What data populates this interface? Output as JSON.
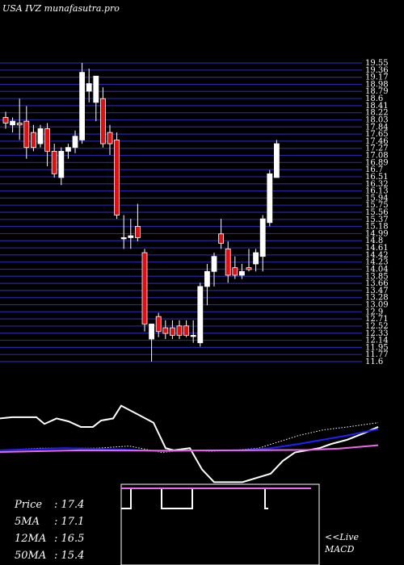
{
  "header": {
    "title": "USA IVZ munafasutra.pro"
  },
  "chart_data": [
    {
      "type": "candlestick",
      "ylim": [
        11.6,
        19.55
      ],
      "y_ticks": [
        "19.55",
        "19.36",
        "19.17",
        "18.98",
        "18.79",
        "18.6",
        "18.41",
        "18.22",
        "18.03",
        "17.84",
        "17.65",
        "17.46",
        "17.27",
        "17.08",
        "16.89",
        "16.7",
        "16.51",
        "16.32",
        "16.13",
        "15.94",
        "15.75",
        "15.56",
        "15.37",
        "15.18",
        "14.99",
        "14.8",
        "14.61",
        "14.42",
        "14.23",
        "14.04",
        "13.85",
        "13.66",
        "13.47",
        "13.28",
        "13.09",
        "12.9",
        "12.71",
        "12.52",
        "12.33",
        "12.14",
        "11.95",
        "11.77",
        "11.6"
      ],
      "candles": [
        {
          "o": 18.1,
          "h": 18.25,
          "l": 17.8,
          "c": 17.95
        },
        {
          "o": 17.9,
          "h": 18.1,
          "l": 17.7,
          "c": 18.0
        },
        {
          "o": 17.95,
          "h": 18.6,
          "l": 17.5,
          "c": 17.9
        },
        {
          "o": 18.0,
          "h": 18.4,
          "l": 17.0,
          "c": 17.3
        },
        {
          "o": 17.7,
          "h": 17.9,
          "l": 17.2,
          "c": 17.3
        },
        {
          "o": 17.4,
          "h": 17.9,
          "l": 17.3,
          "c": 17.8
        },
        {
          "o": 17.8,
          "h": 17.95,
          "l": 16.8,
          "c": 17.2
        },
        {
          "o": 17.2,
          "h": 17.4,
          "l": 16.5,
          "c": 16.6
        },
        {
          "o": 16.5,
          "h": 17.3,
          "l": 16.3,
          "c": 17.2
        },
        {
          "o": 17.2,
          "h": 17.4,
          "l": 17.0,
          "c": 17.3
        },
        {
          "o": 17.3,
          "h": 17.75,
          "l": 17.15,
          "c": 17.6
        },
        {
          "o": 17.5,
          "h": 19.55,
          "l": 17.4,
          "c": 19.3
        },
        {
          "o": 18.8,
          "h": 19.4,
          "l": 18.5,
          "c": 19.0
        },
        {
          "o": 18.5,
          "h": 19.2,
          "l": 18.0,
          "c": 19.2
        },
        {
          "o": 18.6,
          "h": 18.9,
          "l": 17.3,
          "c": 17.4
        },
        {
          "o": 17.7,
          "h": 17.9,
          "l": 17.1,
          "c": 17.4
        },
        {
          "o": 17.5,
          "h": 17.7,
          "l": 15.4,
          "c": 15.5
        },
        {
          "o": 14.9,
          "h": 15.5,
          "l": 14.6,
          "c": 14.9
        },
        {
          "o": 14.9,
          "h": 15.4,
          "l": 14.6,
          "c": 14.95
        },
        {
          "o": 15.2,
          "h": 15.8,
          "l": 14.8,
          "c": 14.9
        },
        {
          "o": 14.5,
          "h": 14.6,
          "l": 12.4,
          "c": 12.6
        },
        {
          "o": 12.2,
          "h": 12.6,
          "l": 11.6,
          "c": 12.6
        },
        {
          "o": 12.8,
          "h": 12.9,
          "l": 12.25,
          "c": 12.4
        },
        {
          "o": 12.5,
          "h": 12.7,
          "l": 12.2,
          "c": 12.35
        },
        {
          "o": 12.5,
          "h": 12.7,
          "l": 12.2,
          "c": 12.3
        },
        {
          "o": 12.55,
          "h": 12.7,
          "l": 12.2,
          "c": 12.3
        },
        {
          "o": 12.55,
          "h": 12.7,
          "l": 12.25,
          "c": 12.3
        },
        {
          "o": 12.3,
          "h": 12.7,
          "l": 12.1,
          "c": 12.3
        },
        {
          "o": 12.1,
          "h": 13.7,
          "l": 12.0,
          "c": 13.6
        },
        {
          "o": 13.6,
          "h": 14.2,
          "l": 13.1,
          "c": 14.0
        },
        {
          "o": 14.0,
          "h": 14.5,
          "l": 13.6,
          "c": 14.4
        },
        {
          "o": 15.0,
          "h": 15.4,
          "l": 14.6,
          "c": 14.75
        },
        {
          "o": 14.6,
          "h": 14.8,
          "l": 13.7,
          "c": 13.9
        },
        {
          "o": 14.1,
          "h": 14.4,
          "l": 13.8,
          "c": 13.9
        },
        {
          "o": 13.9,
          "h": 14.2,
          "l": 13.8,
          "c": 14.0
        },
        {
          "o": 14.1,
          "h": 14.6,
          "l": 14.0,
          "c": 14.05
        },
        {
          "o": 14.2,
          "h": 14.6,
          "l": 14.0,
          "c": 14.5
        },
        {
          "o": 14.4,
          "h": 15.5,
          "l": 14.0,
          "c": 15.4
        },
        {
          "o": 15.3,
          "h": 16.7,
          "l": 15.2,
          "c": 16.6
        },
        {
          "o": 16.5,
          "h": 17.5,
          "l": 16.5,
          "c": 17.4
        }
      ]
    },
    {
      "type": "line",
      "series": [
        {
          "color": "#ffffff",
          "style": "solid",
          "points": [
            [
              0,
              0.25
            ],
            [
              15,
              0.22
            ],
            [
              45,
              0.22
            ],
            [
              55,
              0.38
            ],
            [
              70,
              0.25
            ],
            [
              85,
              0.32
            ],
            [
              100,
              0.45
            ],
            [
              115,
              0.45
            ],
            [
              125,
              0.3
            ],
            [
              140,
              0.25
            ],
            [
              150,
              -0.05
            ],
            [
              175,
              0.2
            ],
            [
              190,
              0.35
            ],
            [
              205,
              0.95
            ],
            [
              215,
              1.0
            ],
            [
              235,
              0.95
            ],
            [
              250,
              1.45
            ],
            [
              255,
              1.55
            ],
            [
              265,
              1.75
            ],
            [
              300,
              1.75
            ],
            [
              335,
              1.55
            ],
            [
              350,
              1.25
            ],
            [
              365,
              1.05
            ],
            [
              380,
              1.0
            ],
            [
              395,
              0.95
            ],
            [
              410,
              0.85
            ],
            [
              430,
              0.75
            ],
            [
              450,
              0.6
            ],
            [
              468,
              0.45
            ]
          ]
        },
        {
          "color": "#ffffff",
          "style": "dotted",
          "points": [
            [
              0,
              1.0
            ],
            [
              50,
              0.95
            ],
            [
              120,
              0.95
            ],
            [
              160,
              0.9
            ],
            [
              200,
              1.05
            ],
            [
              230,
              1.0
            ],
            [
              260,
              1.02
            ],
            [
              290,
              1.0
            ],
            [
              320,
              0.95
            ],
            [
              345,
              0.8
            ],
            [
              370,
              0.65
            ],
            [
              400,
              0.52
            ],
            [
              430,
              0.45
            ],
            [
              468,
              0.35
            ]
          ]
        },
        {
          "color": "#2020ff",
          "style": "solid",
          "points": [
            [
              0,
              1.0
            ],
            [
              80,
              0.95
            ],
            [
              150,
              0.98
            ],
            [
              200,
              1.02
            ],
            [
              260,
              1.0
            ],
            [
              300,
              1.0
            ],
            [
              335,
              0.95
            ],
            [
              370,
              0.85
            ],
            [
              400,
              0.75
            ],
            [
              430,
              0.65
            ],
            [
              468,
              0.5
            ]
          ]
        },
        {
          "color": "#ee66ee",
          "style": "solid",
          "points": [
            [
              0,
              1.04
            ],
            [
              100,
              1.0
            ],
            [
              200,
              1.01
            ],
            [
              300,
              1.0
            ],
            [
              380,
              0.99
            ],
            [
              420,
              0.96
            ],
            [
              468,
              0.88
            ]
          ]
        }
      ]
    },
    {
      "type": "line",
      "title": "MACD",
      "series": [
        {
          "color": "#ffffff",
          "style": "solid",
          "points": [
            [
              0,
              0.3
            ],
            [
              12,
              0.3
            ],
            [
              12,
              0.05
            ],
            [
              50,
              0.05
            ],
            [
              50,
              0.3
            ],
            [
              88,
              0.3
            ],
            [
              88,
              0.05
            ],
            [
              178,
              0.05
            ],
            [
              178,
              0.3
            ],
            [
              182,
              0.3
            ]
          ]
        },
        {
          "color": "#ee66ee",
          "style": "solid",
          "points": [
            [
              0,
              0.05
            ],
            [
              235,
              0.05
            ]
          ]
        }
      ]
    }
  ],
  "stats": [
    {
      "label": "Price",
      "value": "17.4"
    },
    {
      "label": "5MA",
      "value": "17.1"
    },
    {
      "label": "12MA",
      "value": "16.5"
    },
    {
      "label": "50MA",
      "value": "15.4"
    }
  ],
  "live_label": "<<Live",
  "macd_label": "MACD"
}
